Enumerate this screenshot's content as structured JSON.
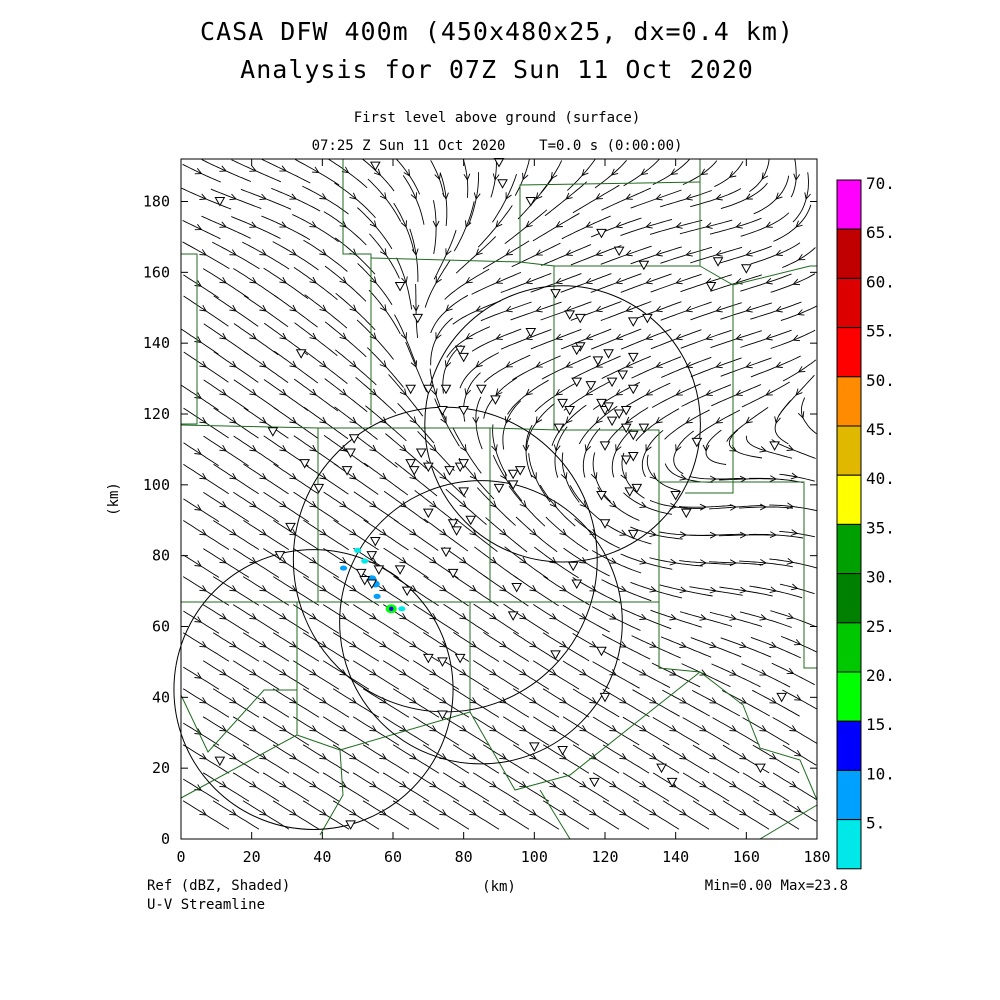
{
  "header": {
    "title_line1": "CASA DFW 400m (450x480x25, dx=0.4 km)",
    "title_line2": "Analysis for 07Z Sun 11 Oct 2020",
    "subtitle_line1": "First level above ground (surface)",
    "subtitle_line2": "07:25 Z Sun 11 Oct 2020    T=0.0 s (0:00:00)"
  },
  "footer": {
    "field_label": "Ref (dBZ, Shaded)",
    "overlay_label": "U-V Streamline",
    "minmax": "Min=0.00 Max=23.8"
  },
  "chart_data": {
    "type": "heatmap",
    "xlabel": "(km)",
    "ylabel": "(km)",
    "xlim": [
      0,
      180
    ],
    "ylim": [
      0,
      192
    ],
    "xticks": [
      0,
      20,
      40,
      60,
      80,
      100,
      120,
      140,
      160,
      180
    ],
    "yticks": [
      0,
      20,
      40,
      60,
      80,
      100,
      120,
      140,
      160,
      180
    ],
    "colorbar": {
      "levels": [
        "70.",
        "65.",
        "60.",
        "55.",
        "50.",
        "45.",
        "40.",
        "35.",
        "30.",
        "25.",
        "20.",
        "15.",
        "10.",
        "5."
      ],
      "colors": [
        "#ff00ff",
        "#c00000",
        "#dc0000",
        "#ff0000",
        "#ff8c00",
        "#e0b800",
        "#ffff00",
        "#00a000",
        "#008000",
        "#00c800",
        "#00ff00",
        "#0000ff",
        "#00a0ff",
        "#00e8e8"
      ]
    },
    "reflectivity_echoes": [
      {
        "x": 46,
        "y": 76.5,
        "dbz": 10
      },
      {
        "x": 50,
        "y": 81.5,
        "dbz": 8
      },
      {
        "x": 52,
        "y": 78.5,
        "dbz": 8
      },
      {
        "x": 54,
        "y": 73.5,
        "dbz": 12
      },
      {
        "x": 55,
        "y": 72,
        "dbz": 14
      },
      {
        "x": 55.5,
        "y": 68.5,
        "dbz": 10
      },
      {
        "x": 59.5,
        "y": 65,
        "dbz": 23.8
      },
      {
        "x": 62.5,
        "y": 65,
        "dbz": 8
      }
    ],
    "radar_range_rings": [
      {
        "center_km": [
          37.5,
          42.2
        ],
        "radius_km": 39.5
      },
      {
        "center_km": [
          74.8,
          78.9
        ],
        "radius_km": 43
      },
      {
        "center_km": [
          84.9,
          61.2
        ],
        "radius_km": 40
      },
      {
        "center_km": [
          108,
          117.2
        ],
        "radius_km": 39
      }
    ],
    "station_markers": [
      [
        11,
        180
      ],
      [
        55,
        190
      ],
      [
        90,
        191
      ],
      [
        91,
        185
      ],
      [
        99,
        180
      ],
      [
        119,
        171
      ],
      [
        124,
        166
      ],
      [
        131,
        162
      ],
      [
        152,
        163
      ],
      [
        160,
        161
      ],
      [
        150,
        156
      ],
      [
        62,
        156
      ],
      [
        106,
        154
      ],
      [
        110,
        148
      ],
      [
        113,
        147
      ],
      [
        128,
        146
      ],
      [
        132,
        147
      ],
      [
        67,
        147
      ],
      [
        99,
        143
      ],
      [
        34,
        137
      ],
      [
        79,
        138
      ],
      [
        80,
        136
      ],
      [
        113,
        139
      ],
      [
        112,
        138
      ],
      [
        118,
        135
      ],
      [
        121,
        137
      ],
      [
        128,
        136
      ],
      [
        112,
        129
      ],
      [
        116,
        128
      ],
      [
        122,
        129
      ],
      [
        125,
        131
      ],
      [
        128,
        127
      ],
      [
        65,
        127
      ],
      [
        70,
        127
      ],
      [
        75,
        127
      ],
      [
        85,
        127
      ],
      [
        89,
        124
      ],
      [
        119,
        123
      ],
      [
        120,
        121
      ],
      [
        121,
        122
      ],
      [
        108,
        123
      ],
      [
        110,
        121
      ],
      [
        122,
        118
      ],
      [
        124,
        120
      ],
      [
        126,
        121
      ],
      [
        74,
        121
      ],
      [
        80,
        121
      ],
      [
        107,
        116
      ],
      [
        120,
        111
      ],
      [
        126,
        116
      ],
      [
        128,
        114
      ],
      [
        131,
        116
      ],
      [
        146,
        112
      ],
      [
        168,
        111
      ],
      [
        26,
        115
      ],
      [
        49,
        113
      ],
      [
        48,
        109
      ],
      [
        68,
        109
      ],
      [
        70,
        105
      ],
      [
        76,
        104
      ],
      [
        79,
        105
      ],
      [
        80,
        106
      ],
      [
        126,
        107
      ],
      [
        128,
        108
      ],
      [
        35,
        106
      ],
      [
        39,
        99
      ],
      [
        47,
        104
      ],
      [
        65,
        106
      ],
      [
        66,
        104
      ],
      [
        80,
        98
      ],
      [
        90,
        99
      ],
      [
        94,
        100
      ],
      [
        94,
        103
      ],
      [
        96,
        104
      ],
      [
        119,
        97
      ],
      [
        127,
        98
      ],
      [
        129,
        99
      ],
      [
        140,
        97
      ],
      [
        143,
        92
      ],
      [
        31,
        88
      ],
      [
        70,
        92
      ],
      [
        77,
        89
      ],
      [
        78,
        87
      ],
      [
        82,
        90
      ],
      [
        120,
        89
      ],
      [
        128,
        86
      ],
      [
        55,
        84
      ],
      [
        28,
        80
      ],
      [
        54,
        80
      ],
      [
        75,
        81
      ],
      [
        51,
        75
      ],
      [
        56,
        76
      ],
      [
        62,
        76
      ],
      [
        77,
        75
      ],
      [
        111,
        77
      ],
      [
        52,
        73
      ],
      [
        54,
        72
      ],
      [
        95,
        71
      ],
      [
        112,
        72
      ],
      [
        64,
        70
      ],
      [
        94,
        63
      ],
      [
        106,
        52
      ],
      [
        119,
        53
      ],
      [
        79,
        51
      ],
      [
        70,
        51
      ],
      [
        74,
        50
      ],
      [
        120,
        40
      ],
      [
        170,
        40
      ],
      [
        74,
        35
      ],
      [
        100,
        26
      ],
      [
        108,
        25
      ],
      [
        136,
        20
      ],
      [
        164,
        20
      ],
      [
        11,
        22
      ],
      [
        139,
        16
      ],
      [
        117,
        16
      ],
      [
        48,
        4
      ]
    ],
    "stream_flow": "northwesterly (toward the southeast) across most of the domain; easterly flow with a cyclonic/anticyclonic bend over the northeast quadrant"
  }
}
